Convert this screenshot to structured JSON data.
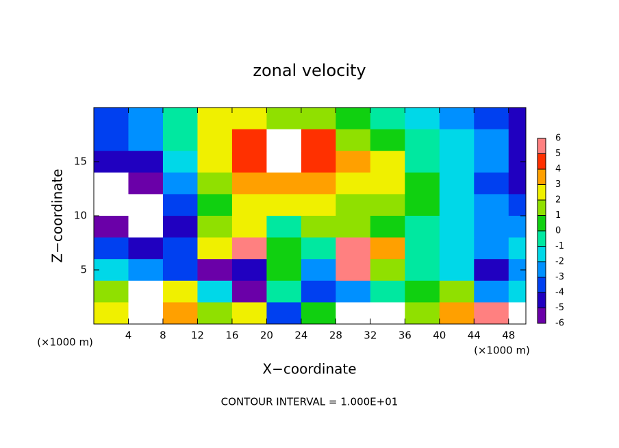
{
  "chart_data": {
    "type": "heatmap",
    "title": "zonal velocity",
    "x_label": "X−coordinate",
    "y_label": "Z−coordinate",
    "x_unit": "(×1000 m)",
    "y_unit": "(×1000 m)",
    "annotation": "CONTOUR INTERVAL = 1.000E+01",
    "xlim": [
      0,
      50
    ],
    "ylim": [
      0,
      20
    ],
    "xticks": [
      4,
      8,
      12,
      16,
      20,
      24,
      28,
      32,
      36,
      40,
      44,
      48
    ],
    "yticks": [
      5,
      10,
      15
    ],
    "x": [
      2,
      6,
      10,
      14,
      18,
      22,
      26,
      30,
      34,
      38,
      42,
      46,
      50
    ],
    "y": [
      19,
      17,
      15,
      13,
      11,
      9,
      7,
      5,
      3,
      1
    ],
    "z": [
      [
        -3,
        -2,
        0,
        3,
        3,
        2,
        2,
        1,
        0,
        -1,
        -2,
        -3,
        -4
      ],
      [
        -3,
        -2,
        0,
        3,
        5,
        7,
        5,
        2,
        1,
        0,
        -1,
        -2,
        -4
      ],
      [
        -4,
        -4,
        -1,
        3,
        5,
        7,
        5,
        4,
        3,
        0,
        -1,
        -2,
        -4
      ],
      [
        -7,
        -5,
        -2,
        2,
        4,
        4,
        4,
        3,
        3,
        1,
        -1,
        -3,
        -4
      ],
      [
        -7,
        -7,
        -3,
        1,
        3,
        3,
        3,
        2,
        2,
        1,
        -1,
        -2,
        -3
      ],
      [
        -5,
        -7,
        -4,
        2,
        3,
        0,
        2,
        2,
        1,
        0,
        -1,
        -2,
        -2
      ],
      [
        -3,
        -4,
        -3,
        3,
        6,
        1,
        0,
        6,
        4,
        0,
        -1,
        -2,
        -1
      ],
      [
        -1,
        -2,
        -3,
        -5,
        -4,
        1,
        -2,
        6,
        2,
        0,
        -1,
        -4,
        -2
      ],
      [
        2,
        7,
        3,
        -1,
        -5,
        0,
        -3,
        -2,
        0,
        1,
        2,
        -2,
        -1
      ],
      [
        3,
        7,
        4,
        2,
        3,
        -3,
        1,
        -7,
        -7,
        2,
        4,
        6,
        7
      ]
    ],
    "colorbar_ticks": [
      -6,
      -5,
      -4,
      -3,
      -2,
      -1,
      0,
      1,
      2,
      3,
      4,
      5,
      6
    ],
    "colors": [
      "#6a00a8",
      "#2000c0",
      "#0040f0",
      "#0090ff",
      "#00d8e8",
      "#00e8a0",
      "#10d010",
      "#90e000",
      "#f0f000",
      "#ffa000",
      "#ff3000",
      "#ff8080"
    ],
    "out_of_range_color": "#ffffff"
  }
}
